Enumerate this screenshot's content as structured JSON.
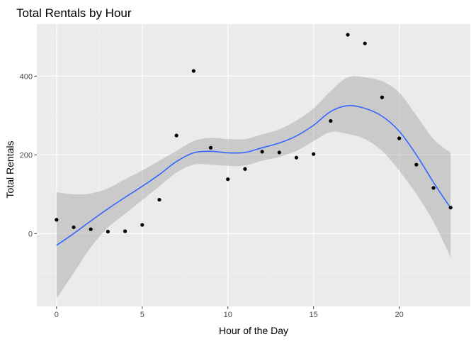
{
  "colors": {
    "panel": "#EBEBEB",
    "grid_major": "#FFFFFF",
    "grid_minor": "#F5F5F5",
    "point": "#000000",
    "smooth_line": "#3366FF",
    "ribbon": "#999999"
  },
  "chart_data": {
    "type": "scatter",
    "title": "Total Rentals by Hour",
    "xlabel": "Hour of the Day",
    "ylabel": "Total Rentals",
    "xlim": [
      -1.15,
      24.15
    ],
    "ylim": [
      -185,
      532
    ],
    "x_ticks": [
      0,
      5,
      10,
      15,
      20
    ],
    "x_tick_labels": [
      "0",
      "5",
      "10",
      "15",
      "20"
    ],
    "y_ticks": [
      0,
      200,
      400
    ],
    "y_tick_labels": [
      "0",
      "200",
      "400"
    ],
    "grid": true,
    "legend": "none",
    "series": [
      {
        "type": "scatter",
        "x": [
          0,
          1,
          2,
          3,
          4,
          5,
          6,
          7,
          8,
          9,
          10,
          11,
          12,
          13,
          14,
          15,
          16,
          17,
          18,
          19,
          20,
          21,
          22,
          23
        ],
        "values": [
          35,
          16,
          11,
          5,
          6,
          22,
          86,
          249,
          413,
          218,
          138,
          164,
          208,
          206,
          193,
          202,
          286,
          505,
          483,
          346,
          242,
          175,
          116,
          66
        ]
      },
      {
        "type": "smooth",
        "x": [
          0,
          1,
          2,
          3,
          4,
          5,
          6,
          7,
          8,
          9,
          10,
          11,
          12,
          13,
          14,
          15,
          16,
          17,
          18,
          19,
          20,
          21,
          22,
          23
        ],
        "values": [
          -30,
          0,
          32,
          63,
          92,
          120,
          150,
          183,
          205,
          209,
          205,
          206,
          218,
          230,
          248,
          275,
          310,
          325,
          318,
          298,
          260,
          200,
          130,
          65
        ],
        "lower": [
          -165,
          -100,
          -35,
          15,
          50,
          85,
          120,
          155,
          175,
          175,
          172,
          173,
          185,
          195,
          210,
          235,
          258,
          253,
          240,
          210,
          160,
          100,
          30,
          -60
        ],
        "upper": [
          105,
          100,
          102,
          115,
          138,
          160,
          185,
          210,
          235,
          243,
          240,
          240,
          252,
          265,
          287,
          318,
          362,
          397,
          397,
          387,
          358,
          300,
          240,
          205
        ]
      }
    ]
  }
}
